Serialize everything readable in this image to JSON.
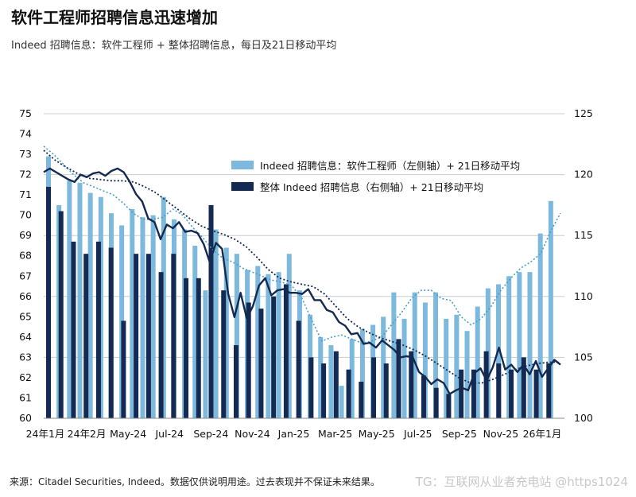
{
  "header": {
    "title": "软件工程师招聘信息迅速增加",
    "subtitle": "Indeed 招聘信息：软件工程师 + 整体招聘信息，每日及21日移动平均"
  },
  "footer": {
    "source": "来源：Citadel Securities, Indeed。数据仅供说明用途。过去表现并不保证未来结果。",
    "watermark": "TG：互联网从业者充电站 @https1024"
  },
  "colors": {
    "light_bar": "#7db9dc",
    "dark_bar": "#142a52",
    "light_line": "#4a9ec9",
    "dark_line": "#142a52",
    "gridline": "#cccccc"
  },
  "chart_data": {
    "type": "bar",
    "x_tick_labels": [
      "24年1月",
      "24年2月",
      "May-24",
      "Jul-24",
      "Sep-24",
      "Nov-24",
      "Jan-25",
      "Mar-25",
      "May-25",
      "Jul-25",
      "Sep-25",
      "Nov-25",
      "26年1月"
    ],
    "left_axis": {
      "ylim": [
        60,
        75
      ],
      "ticks": [
        60,
        61,
        62,
        63,
        64,
        65,
        66,
        67,
        68,
        69,
        70,
        71,
        72,
        73,
        74,
        75
      ]
    },
    "right_axis": {
      "ylim": [
        100,
        125
      ],
      "ticks": [
        100,
        105,
        110,
        115,
        120,
        125
      ]
    },
    "grid": "horizontal-at-right-ticks",
    "legend_position": "top-right",
    "series": [
      {
        "name": "Indeed 招聘信息：软件工程师（左侧轴）+ 21日移动平均",
        "axis": "left",
        "bar_values": [
          72.9,
          70.5,
          71.7,
          71.6,
          71.1,
          70.9,
          70.1,
          69.5,
          70.3,
          69.9,
          70.0,
          70.9,
          69.8,
          69.3,
          68.5,
          66.3,
          69.3,
          68.4,
          68.1,
          67.3,
          67.5,
          67.1,
          67.2,
          68.1,
          66.3,
          65.1,
          64.0,
          63.6,
          61.6,
          63.9,
          64.4,
          64.6,
          65.0,
          66.2,
          64.9,
          66.2,
          65.7,
          66.2,
          64.9,
          65.1,
          64.3,
          65.5,
          66.4,
          66.6,
          67.0,
          67.2,
          67.2,
          69.1,
          70.7
        ],
        "ma_values": [
          73.4,
          73.0,
          72.5,
          72.0,
          71.6,
          71.4,
          71.2,
          71.0,
          70.6,
          70.1,
          69.8,
          69.8,
          69.9,
          70.3,
          70.0,
          69.4,
          68.9,
          68.3,
          67.9,
          67.7,
          67.4,
          67.2,
          67.0,
          66.8,
          66.7,
          66.5,
          65.9,
          64.8,
          63.8,
          64.0,
          64.1,
          63.9,
          63.7,
          63.8,
          64.0,
          64.6,
          65.2,
          65.9,
          66.3,
          66.3,
          65.9,
          65.8,
          65.0,
          64.6,
          64.9,
          65.5,
          66.3,
          66.9,
          67.4,
          67.7,
          68.1,
          69.2,
          70.1
        ]
      },
      {
        "name": "整体 Indeed 招聘信息（右侧轴）+ 21日移动平均",
        "axis": "right",
        "bar_values": [
          119.0,
          117.0,
          114.5,
          113.5,
          114.5,
          114.0,
          108.0,
          113.5,
          113.5,
          112.0,
          113.5,
          111.5,
          111.5,
          117.5,
          110.5,
          106.0,
          109.5,
          109.0,
          110.0,
          111.0,
          108.0,
          105.0,
          104.5,
          105.5,
          104.0,
          103.0,
          105.0,
          104.5,
          106.5,
          105.5,
          103.5,
          102.5,
          102.0,
          104.0,
          104.0,
          105.5,
          104.5,
          104.0,
          105.0,
          104.0,
          104.5
        ],
        "daily_line": [
          120.2,
          120.5,
          120.2,
          119.9,
          119.6,
          119.4,
          120.0,
          119.8,
          120.1,
          120.2,
          119.9,
          120.3,
          120.5,
          120.2,
          119.4,
          118.4,
          117.8,
          116.4,
          116.1,
          114.7,
          115.9,
          115.6,
          116.1,
          115.3,
          115.4,
          115.2,
          114.3,
          112.8,
          114.4,
          113.9,
          110.2,
          108.3,
          110.3,
          108.2,
          109.2,
          110.9,
          111.5,
          110.1,
          110.5,
          110.6,
          110.3,
          110.3,
          110.2,
          110.6,
          109.7,
          109.7,
          108.9,
          108.7,
          107.9,
          107.6,
          106.9,
          107.0,
          106.1,
          106.2,
          105.8,
          106.4,
          106.0,
          105.6,
          105.0,
          105.1,
          105.0,
          103.8,
          103.4,
          102.8,
          103.2,
          102.9,
          102.0,
          102.3,
          102.5,
          102.3,
          103.7,
          104.1,
          103.1,
          104.2,
          105.8,
          104.0,
          104.4,
          103.8,
          104.4,
          103.6,
          104.7,
          103.4,
          104.1,
          104.8,
          104.4
        ],
        "ma_values": [
          122.0,
          121.2,
          120.6,
          120.1,
          119.7,
          119.6,
          119.5,
          119.5,
          119.4,
          119.0,
          118.5,
          117.8,
          117.1,
          116.4,
          115.8,
          115.4,
          115.1,
          114.7,
          114.1,
          113.2,
          112.2,
          111.5,
          111.2,
          111.0,
          110.8,
          110.2,
          109.2,
          108.2,
          107.5,
          107.0,
          106.6,
          106.3,
          106.0,
          105.6,
          105.1,
          104.5,
          103.9,
          103.3,
          102.9,
          102.9,
          103.2,
          103.6,
          104.0,
          104.3,
          104.5,
          104.6,
          104.6
        ]
      }
    ]
  }
}
